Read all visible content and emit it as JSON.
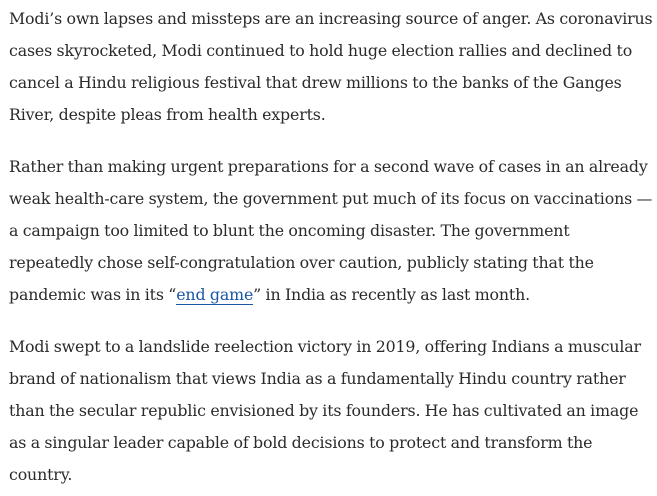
{
  "article": {
    "paragraphs": [
      {
        "text": "Modi’s own lapses and missteps are an increasing source of anger. As coronavirus cases skyrocketed, Modi continued to hold huge election rallies and declined to cancel a Hindu religious festival that drew millions to the banks of the Ganges River, despite pleas from health experts."
      },
      {
        "before_link": "Rather than making urgent preparations for a second wave of cases in an already weak health-care system, the government put much of its focus on vaccinations — a campaign too limited to blunt the oncoming disaster. The government repeatedly chose self-congratulation over caution, publicly stating that the pandemic was in its “",
        "link_text": "end game",
        "after_link": "” in India as recently as last month."
      },
      {
        "text": "Modi swept to a landslide reelection victory in 2019, offering Indians a muscular brand of nationalism that views India as a fundamentally Hindu country rather than the secular republic envisioned by its founders. He has cultivated an image as a singular leader capable of bold decisions to protect and transform the country."
      }
    ],
    "link_color": "#1955a5",
    "text_color": "#2a2a2a"
  }
}
